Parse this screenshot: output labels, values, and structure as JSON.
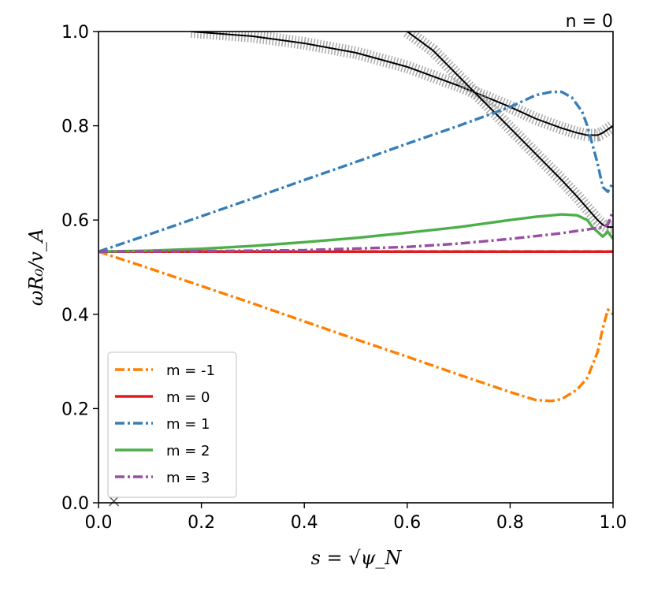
{
  "chart_data": {
    "type": "line",
    "title": "n = 0",
    "xlabel": "s = √ψ_N",
    "ylabel": "ωR₀/v_A",
    "xlim": [
      0.0,
      1.0
    ],
    "ylim": [
      0.0,
      1.0
    ],
    "xticks": [
      "0.0",
      "0.2",
      "0.4",
      "0.6",
      "0.8",
      "1.0"
    ],
    "yticks": [
      "0.0",
      "0.2",
      "0.4",
      "0.6",
      "0.8",
      "1.0"
    ],
    "grid": false,
    "legend_position": "lower-left",
    "series": [
      {
        "name": "m = -1",
        "color": "#ff7f00",
        "dash": "dashdot",
        "x": [
          0.0,
          0.1,
          0.2,
          0.3,
          0.4,
          0.5,
          0.6,
          0.7,
          0.8,
          0.85,
          0.88,
          0.9,
          0.93,
          0.95,
          0.97,
          0.98,
          0.99,
          1.0
        ],
        "y": [
          0.533,
          0.497,
          0.46,
          0.423,
          0.385,
          0.347,
          0.31,
          0.272,
          0.235,
          0.218,
          0.216,
          0.22,
          0.24,
          0.265,
          0.32,
          0.37,
          0.41,
          0.4
        ]
      },
      {
        "name": "m = 0",
        "color": "#e41a1c",
        "dash": "solid",
        "x": [
          0.0,
          1.0
        ],
        "y": [
          0.533,
          0.533
        ]
      },
      {
        "name": "m = 1",
        "color": "#377eb8",
        "dash": "dashdot",
        "x": [
          0.0,
          0.1,
          0.2,
          0.3,
          0.4,
          0.5,
          0.6,
          0.7,
          0.8,
          0.85,
          0.88,
          0.9,
          0.92,
          0.94,
          0.95,
          0.96,
          0.97,
          0.98,
          0.99,
          1.0
        ],
        "y": [
          0.533,
          0.57,
          0.608,
          0.646,
          0.685,
          0.723,
          0.762,
          0.8,
          0.84,
          0.865,
          0.872,
          0.872,
          0.86,
          0.83,
          0.8,
          0.76,
          0.72,
          0.67,
          0.66,
          0.68
        ]
      },
      {
        "name": "m = 2",
        "color": "#4daf4a",
        "dash": "solid",
        "x": [
          0.0,
          0.1,
          0.2,
          0.3,
          0.4,
          0.5,
          0.6,
          0.7,
          0.8,
          0.85,
          0.9,
          0.93,
          0.95,
          0.96,
          0.97,
          0.98,
          0.99,
          1.0
        ],
        "y": [
          0.533,
          0.535,
          0.539,
          0.545,
          0.553,
          0.562,
          0.573,
          0.585,
          0.6,
          0.607,
          0.612,
          0.61,
          0.6,
          0.585,
          0.575,
          0.565,
          0.575,
          0.56
        ]
      },
      {
        "name": "m = 3",
        "color": "#984ea3",
        "dash": "dashdot",
        "x": [
          0.0,
          0.2,
          0.4,
          0.6,
          0.7,
          0.8,
          0.9,
          0.95,
          0.98,
          0.99,
          1.0
        ],
        "y": [
          0.533,
          0.534,
          0.536,
          0.543,
          0.55,
          0.56,
          0.572,
          0.58,
          0.585,
          0.59,
          0.62
        ]
      }
    ],
    "continuum_branches": [
      {
        "x": [
          0.18,
          0.3,
          0.4,
          0.5,
          0.6,
          0.7,
          0.8,
          0.85,
          0.9,
          0.93,
          0.95,
          0.97,
          0.98,
          1.0
        ],
        "y": [
          1.0,
          0.99,
          0.975,
          0.955,
          0.925,
          0.885,
          0.84,
          0.815,
          0.795,
          0.785,
          0.78,
          0.78,
          0.785,
          0.8
        ]
      },
      {
        "x": [
          0.6,
          0.65,
          0.7,
          0.75,
          0.8,
          0.85,
          0.9,
          0.93,
          0.95,
          0.97,
          0.98,
          0.99,
          1.0
        ],
        "y": [
          1.0,
          0.96,
          0.905,
          0.85,
          0.795,
          0.74,
          0.685,
          0.65,
          0.625,
          0.6,
          0.59,
          0.585,
          0.585
        ]
      },
      {
        "x": [
          0.0,
          1.0
        ],
        "y": [
          0.533,
          0.533
        ]
      }
    ],
    "isolated_markers": [
      {
        "x": 0.03,
        "y": 0.0
      }
    ]
  }
}
